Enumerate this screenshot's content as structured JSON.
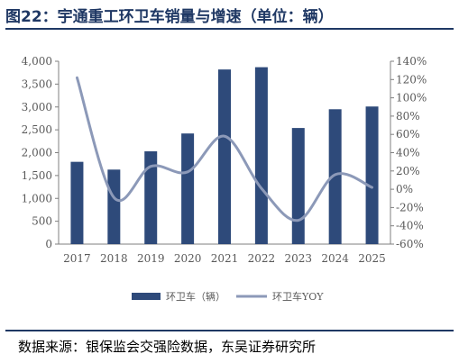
{
  "title": "图22：宇通重工环卫车销量与增速（单位：辆）",
  "source": "数据来源：银保监会交强险数据，东吴证券研究所",
  "colors": {
    "bar": "#2e4a7a",
    "line": "#8c99b8",
    "title": "#1f3864",
    "axis": "#7f7f7f",
    "text": "#595959"
  },
  "chart_data": {
    "type": "bar+line",
    "categories": [
      "2017",
      "2018",
      "2019",
      "2020",
      "2021",
      "2022",
      "2023",
      "2024",
      "2025"
    ],
    "series": [
      {
        "name": "环卫车（辆）",
        "type": "bar",
        "axis": "left",
        "values": [
          1800,
          1630,
          2030,
          2420,
          3820,
          3870,
          2540,
          2950,
          3010
        ]
      },
      {
        "name": "环卫车YOY",
        "type": "line",
        "axis": "right",
        "smooth": true,
        "values": [
          122,
          -9,
          25,
          19,
          58,
          1,
          -34,
          16,
          2
        ]
      }
    ],
    "y_left": {
      "min": 0,
      "max": 4000,
      "step": 500,
      "tick_labels": [
        "0",
        "500",
        "1,000",
        "1,500",
        "2,000",
        "2,500",
        "3,000",
        "3,500",
        "4,000"
      ]
    },
    "y_right": {
      "min": -60,
      "max": 140,
      "step": 20,
      "tick_labels": [
        "-60%",
        "-40%",
        "-20%",
        "0%",
        "20%",
        "40%",
        "60%",
        "80%",
        "100%",
        "120%",
        "140%"
      ]
    },
    "grid": false,
    "legend_position": "bottom"
  }
}
